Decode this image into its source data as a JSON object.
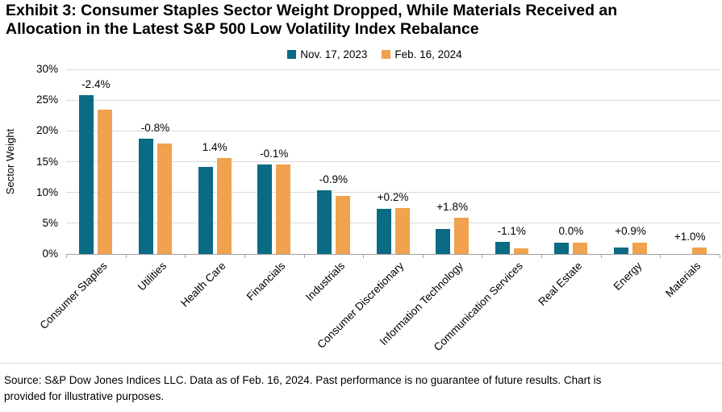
{
  "title": {
    "line1": "Exhibit 3: Consumer Staples Sector Weight Dropped, While Materials Received an",
    "line2": "Allocation in the Latest S&P 500 Low Volatility Index Rebalance"
  },
  "footer": {
    "line1": "Source: S&P Dow Jones Indices LLC. Data as of Feb. 16, 2024. Past performance is no guarantee of future results. Chart is",
    "line2": "provided for illustrative purposes."
  },
  "chart_data": {
    "type": "bar",
    "title": "Exhibit 3: Consumer Staples Sector Weight Dropped, While Materials Received an Allocation in the Latest S&P 500 Low Volatility Index Rebalance",
    "ylabel": "Sector Weight",
    "xlabel": "",
    "ylim": [
      0,
      30
    ],
    "ytick_step": 5,
    "ytick_suffix": "%",
    "grid": true,
    "legend_position": "top-center",
    "categories": [
      "Consumer Staples",
      "Utilities",
      "Health Care",
      "Financials",
      "Industrials",
      "Consumer Discretionary",
      "Information Technology",
      "Communication Services",
      "Real Estate",
      "Energy",
      "Materials"
    ],
    "series": [
      {
        "name": "Nov. 17, 2023",
        "color": "#0B6B84",
        "values": [
          25.8,
          18.7,
          14.2,
          14.6,
          10.3,
          7.3,
          4.1,
          2.0,
          1.9,
          1.0,
          0.0
        ]
      },
      {
        "name": "Feb. 16, 2024",
        "color": "#F0A24E",
        "values": [
          23.4,
          17.9,
          15.6,
          14.5,
          9.4,
          7.5,
          5.9,
          0.9,
          1.9,
          1.9,
          1.0
        ]
      }
    ],
    "diff_labels": [
      "-2.4%",
      "-0.8%",
      "1.4%",
      "-0.1%",
      "-0.9%",
      "+0.2%",
      "+1.8%",
      "-1.1%",
      "0.0%",
      "+0.9%",
      "+1.0%"
    ],
    "colors": {
      "gridline": "#D9D9D9",
      "axis": "#A0A0A0",
      "label_text": "#000000"
    }
  }
}
